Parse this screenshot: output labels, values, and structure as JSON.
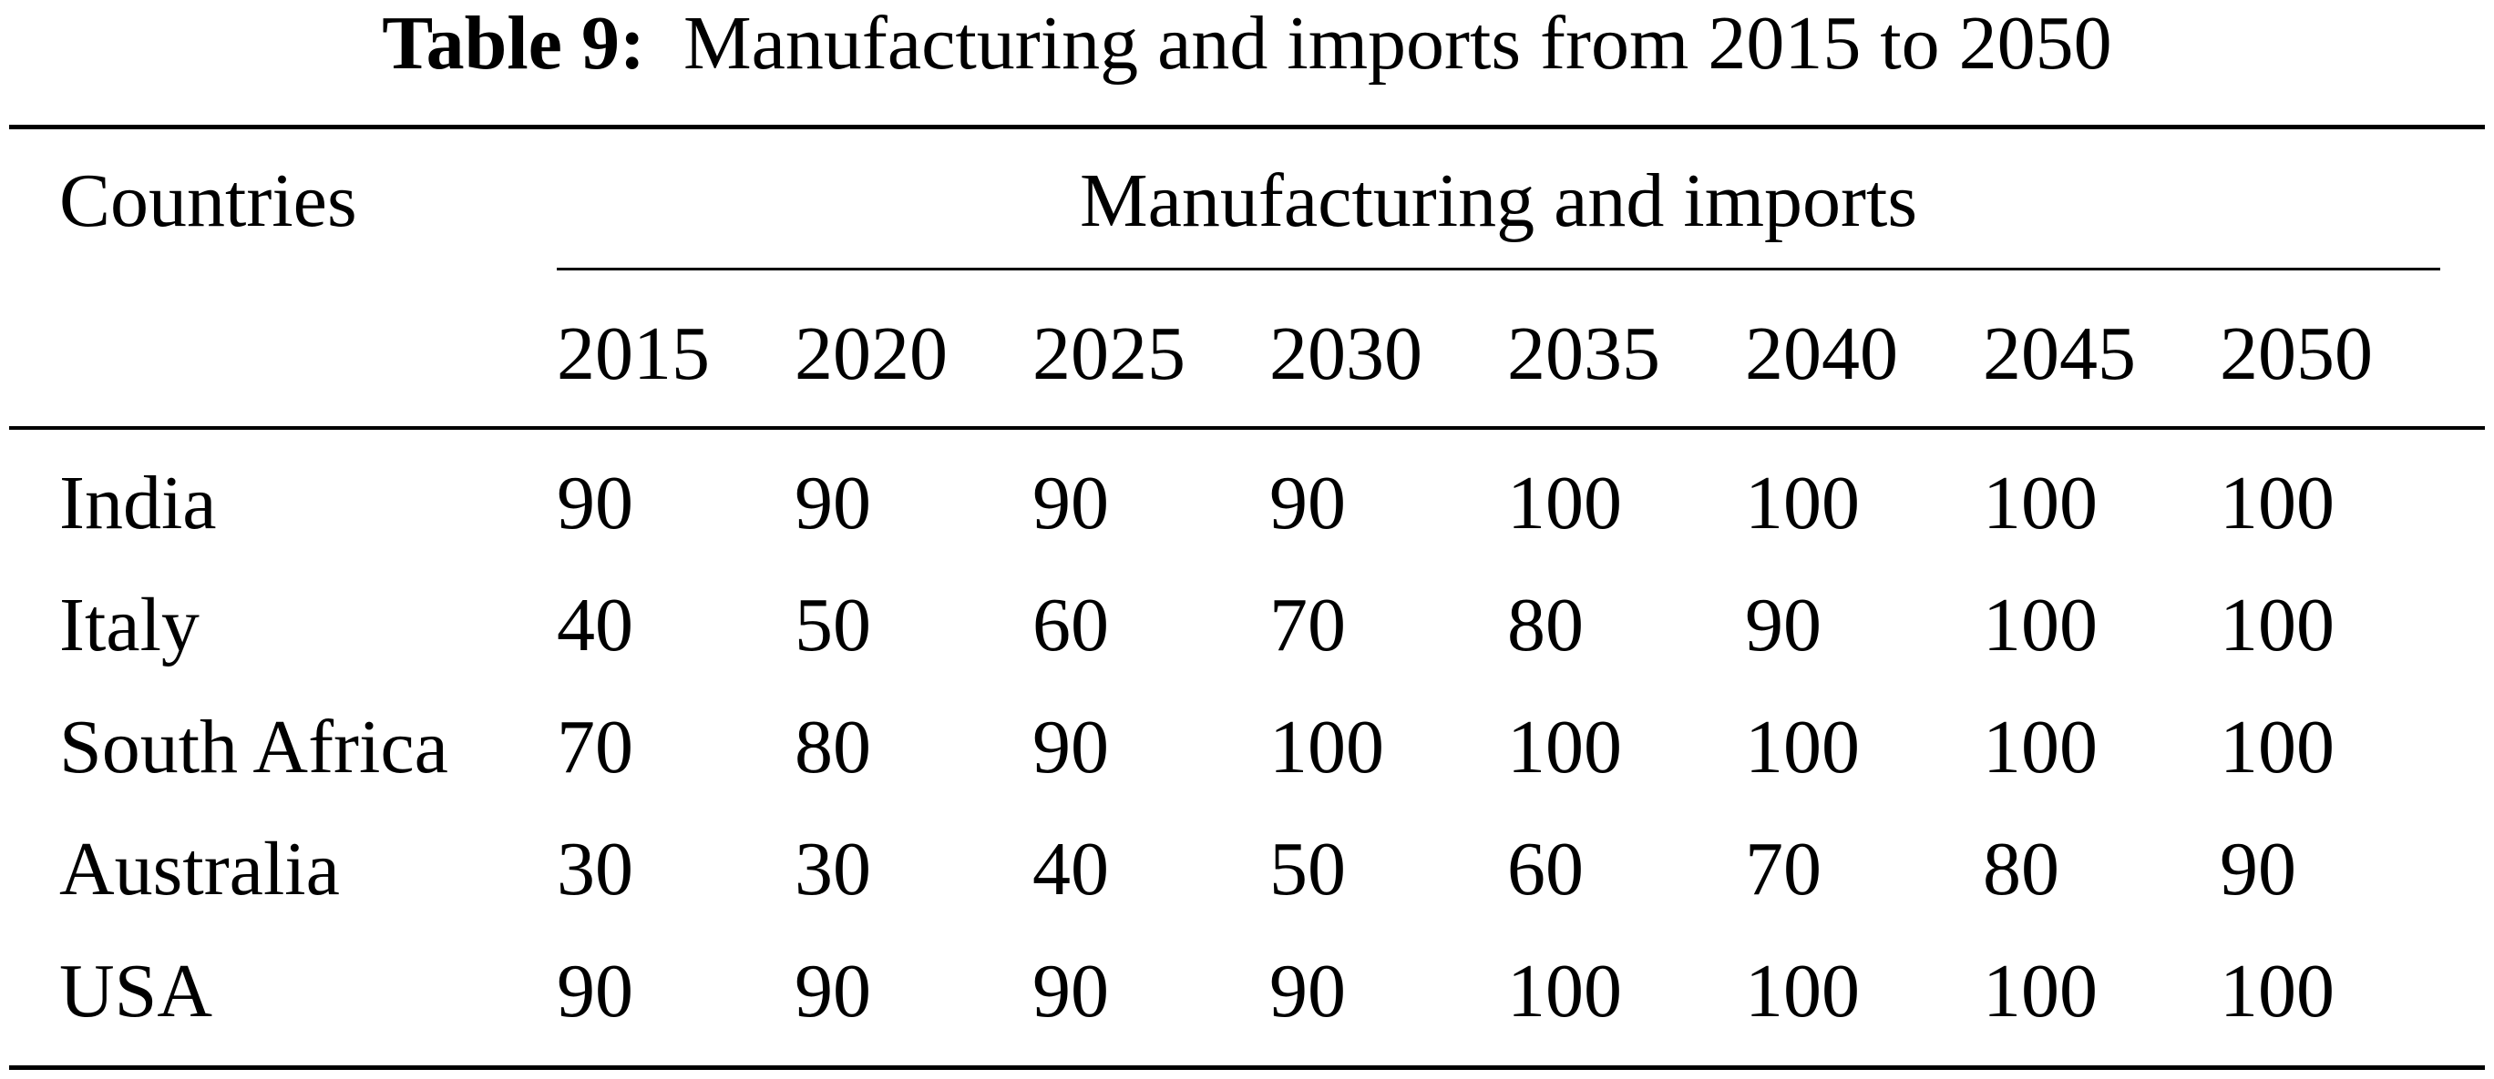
{
  "caption": {
    "label": "Table 9:",
    "title": "Manufacturing and imports from 2015 to 2050"
  },
  "table": {
    "row_header": "Countries",
    "group_header": "Manufacturing and imports",
    "years": [
      "2015",
      "2020",
      "2025",
      "2030",
      "2035",
      "2040",
      "2045",
      "2050"
    ],
    "rows": [
      {
        "country": "India",
        "values": [
          "90",
          "90",
          "90",
          "90",
          "100",
          "100",
          "100",
          "100"
        ]
      },
      {
        "country": "Italy",
        "values": [
          "40",
          "50",
          "60",
          "70",
          "80",
          "90",
          "100",
          "100"
        ]
      },
      {
        "country": "South Africa",
        "values": [
          "70",
          "80",
          "90",
          "100",
          "100",
          "100",
          "100",
          "100"
        ]
      },
      {
        "country": "Australia",
        "values": [
          "30",
          "30",
          "40",
          "50",
          "60",
          "70",
          "80",
          "90"
        ]
      },
      {
        "country": "USA",
        "values": [
          "90",
          "90",
          "90",
          "90",
          "100",
          "100",
          "100",
          "100"
        ]
      }
    ]
  }
}
